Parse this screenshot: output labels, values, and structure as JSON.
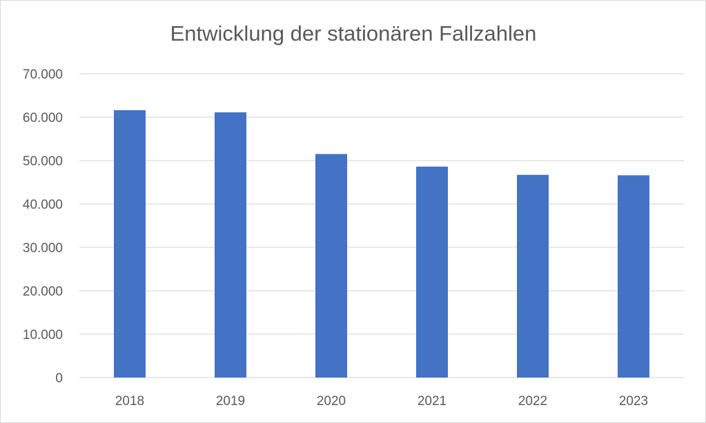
{
  "chart_data": {
    "type": "bar",
    "title": "Entwicklung der stationären Fallzahlen",
    "categories": [
      "2018",
      "2019",
      "2020",
      "2021",
      "2022",
      "2023"
    ],
    "series": [
      {
        "values": [
          61600,
          61100,
          51500,
          48600,
          46700,
          46600
        ]
      }
    ],
    "ylim": [
      0,
      70000
    ],
    "y_ticks": [
      0,
      10000,
      20000,
      30000,
      40000,
      50000,
      60000,
      70000
    ],
    "y_tick_labels": [
      "0",
      "10.000",
      "20.000",
      "30.000",
      "40.000",
      "50.000",
      "60.000",
      "70.000"
    ],
    "grid": true,
    "legend": "none",
    "bar_color": "#4472c4",
    "grid_color": "#d9d9d9"
  }
}
